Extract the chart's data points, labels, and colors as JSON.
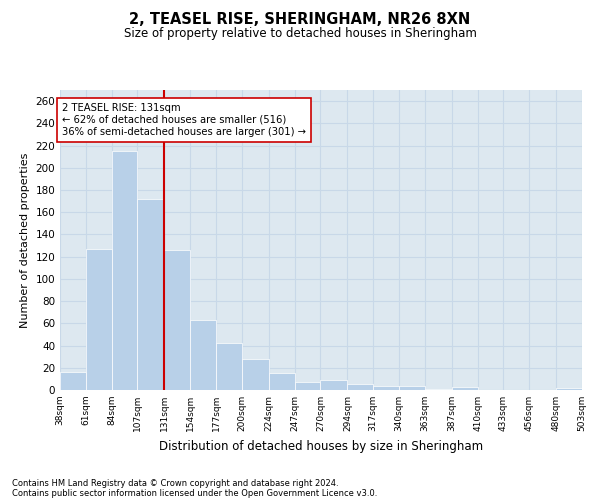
{
  "title1": "2, TEASEL RISE, SHERINGHAM, NR26 8XN",
  "title2": "Size of property relative to detached houses in Sheringham",
  "xlabel": "Distribution of detached houses by size in Sheringham",
  "ylabel": "Number of detached properties",
  "footnote1": "Contains HM Land Registry data © Crown copyright and database right 2024.",
  "footnote2": "Contains public sector information licensed under the Open Government Licence v3.0.",
  "bar_color": "#b8d0e8",
  "bar_edgecolor": "white",
  "grid_color": "#c8d8e8",
  "background_color": "#dde8f0",
  "vline_x": 131,
  "vline_color": "#cc0000",
  "annotation_text": "2 TEASEL RISE: 131sqm\n← 62% of detached houses are smaller (516)\n36% of semi-detached houses are larger (301) →",
  "annotation_box_color": "white",
  "annotation_box_edgecolor": "#cc0000",
  "bin_edges": [
    38,
    61,
    84,
    107,
    131,
    154,
    177,
    200,
    224,
    247,
    270,
    294,
    317,
    340,
    363,
    387,
    410,
    433,
    456,
    480,
    503
  ],
  "bar_heights": [
    16,
    127,
    215,
    172,
    126,
    63,
    42,
    28,
    15,
    7,
    9,
    5,
    4,
    4,
    1,
    3,
    0,
    0,
    0,
    2
  ],
  "ylim": [
    0,
    270
  ],
  "yticks": [
    0,
    20,
    40,
    60,
    80,
    100,
    120,
    140,
    160,
    180,
    200,
    220,
    240,
    260
  ]
}
